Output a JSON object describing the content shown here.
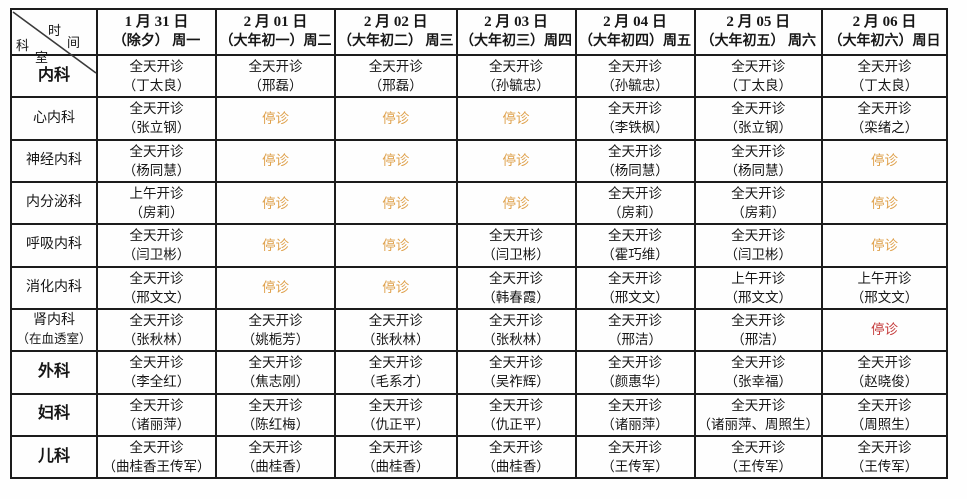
{
  "table": {
    "corner": {
      "time_chars": [
        "时",
        "间"
      ],
      "dept_chars": [
        "科",
        "室"
      ]
    },
    "columns": [
      {
        "date": "1 月 31 日",
        "note": "（除夕） 周一"
      },
      {
        "date": "2 月 01 日",
        "note": "（大年初一）周二"
      },
      {
        "date": "2 月 02 日",
        "note": "（大年初二） 周三"
      },
      {
        "date": "2 月 03 日",
        "note": "（大年初三）周四"
      },
      {
        "date": "2 月 04 日",
        "note": "（大年初四）周五"
      },
      {
        "date": "2 月 05 日",
        "note": "（大年初五） 周六"
      },
      {
        "date": "2 月 06 日",
        "note": "（大年初六）周日"
      }
    ],
    "rows": [
      {
        "dept": "内科",
        "dept_note": "",
        "bold": true,
        "cells": [
          {
            "status": "全天开诊",
            "doctor": "（丁太良）",
            "type": "open"
          },
          {
            "status": "全天开诊",
            "doctor": "（邢磊）",
            "type": "open"
          },
          {
            "status": "全天开诊",
            "doctor": "（邢磊）",
            "type": "open"
          },
          {
            "status": "全天开诊",
            "doctor": "（孙毓忠）",
            "type": "open"
          },
          {
            "status": "全天开诊",
            "doctor": "（孙毓忠）",
            "type": "open"
          },
          {
            "status": "全天开诊",
            "doctor": "（丁太良）",
            "type": "open"
          },
          {
            "status": "全天开诊",
            "doctor": "（丁太良）",
            "type": "open"
          }
        ]
      },
      {
        "dept": "心内科",
        "dept_note": "",
        "bold": false,
        "cells": [
          {
            "status": "全天开诊",
            "doctor": "（张立钢）",
            "type": "open"
          },
          {
            "status": "停诊",
            "doctor": "",
            "type": "suspended-orange"
          },
          {
            "status": "停诊",
            "doctor": "",
            "type": "suspended-orange"
          },
          {
            "status": "停诊",
            "doctor": "",
            "type": "suspended-orange"
          },
          {
            "status": "全天开诊",
            "doctor": "（李铁枫）",
            "type": "open"
          },
          {
            "status": "全天开诊",
            "doctor": "（张立钢）",
            "type": "open"
          },
          {
            "status": "全天开诊",
            "doctor": "（栾绪之）",
            "type": "open"
          }
        ]
      },
      {
        "dept": "神经内科",
        "dept_note": "",
        "bold": false,
        "cells": [
          {
            "status": "全天开诊",
            "doctor": "（杨同慧）",
            "type": "open"
          },
          {
            "status": "停诊",
            "doctor": "",
            "type": "suspended-orange"
          },
          {
            "status": "停诊",
            "doctor": "",
            "type": "suspended-orange"
          },
          {
            "status": "停诊",
            "doctor": "",
            "type": "suspended-orange"
          },
          {
            "status": "全天开诊",
            "doctor": "（杨同慧）",
            "type": "open"
          },
          {
            "status": "全天开诊",
            "doctor": "（杨同慧）",
            "type": "open"
          },
          {
            "status": "停诊",
            "doctor": "",
            "type": "suspended-orange"
          }
        ]
      },
      {
        "dept": "内分泌科",
        "dept_note": "",
        "bold": false,
        "cells": [
          {
            "status": "上午开诊",
            "doctor": "（房莉）",
            "type": "open"
          },
          {
            "status": "停诊",
            "doctor": "",
            "type": "suspended-orange"
          },
          {
            "status": "停诊",
            "doctor": "",
            "type": "suspended-orange"
          },
          {
            "status": "停诊",
            "doctor": "",
            "type": "suspended-orange"
          },
          {
            "status": "全天开诊",
            "doctor": "（房莉）",
            "type": "open"
          },
          {
            "status": "全天开诊",
            "doctor": "（房莉）",
            "type": "open"
          },
          {
            "status": "停诊",
            "doctor": "",
            "type": "suspended-orange"
          }
        ]
      },
      {
        "dept": "呼吸内科",
        "dept_note": "",
        "bold": false,
        "cells": [
          {
            "status": "全天开诊",
            "doctor": "（闫卫彬）",
            "type": "open"
          },
          {
            "status": "停诊",
            "doctor": "",
            "type": "suspended-orange"
          },
          {
            "status": "停诊",
            "doctor": "",
            "type": "suspended-orange"
          },
          {
            "status": "全天开诊",
            "doctor": "（闫卫彬）",
            "type": "open"
          },
          {
            "status": "全天开诊",
            "doctor": "（霍巧维）",
            "type": "open"
          },
          {
            "status": "全天开诊",
            "doctor": "（闫卫彬）",
            "type": "open"
          },
          {
            "status": "停诊",
            "doctor": "",
            "type": "suspended-orange"
          }
        ]
      },
      {
        "dept": "消化内科",
        "dept_note": "",
        "bold": false,
        "cells": [
          {
            "status": "全天开诊",
            "doctor": "（邢文文）",
            "type": "open"
          },
          {
            "status": "停诊",
            "doctor": "",
            "type": "suspended-orange"
          },
          {
            "status": "停诊",
            "doctor": "",
            "type": "suspended-orange"
          },
          {
            "status": "全天开诊",
            "doctor": "（韩春霞）",
            "type": "open"
          },
          {
            "status": "全天开诊",
            "doctor": "（邢文文）",
            "type": "open"
          },
          {
            "status": "上午开诊",
            "doctor": "（邢文文）",
            "type": "open"
          },
          {
            "status": "上午开诊",
            "doctor": "（邢文文）",
            "type": "open"
          }
        ]
      },
      {
        "dept": "肾内科",
        "dept_note": "（在血透室）",
        "bold": false,
        "cells": [
          {
            "status": "全天开诊",
            "doctor": "（张秋林）",
            "type": "open"
          },
          {
            "status": "全天开诊",
            "doctor": "（姚栀芳）",
            "type": "open"
          },
          {
            "status": "全天开诊",
            "doctor": "（张秋林）",
            "type": "open"
          },
          {
            "status": "全天开诊",
            "doctor": "（张秋林）",
            "type": "open"
          },
          {
            "status": "全天开诊",
            "doctor": "（邢洁）",
            "type": "open"
          },
          {
            "status": "全天开诊",
            "doctor": "（邢洁）",
            "type": "open"
          },
          {
            "status": "停诊",
            "doctor": "",
            "type": "suspended-red"
          }
        ]
      },
      {
        "dept": "外科",
        "dept_note": "",
        "bold": true,
        "cells": [
          {
            "status": "全天开诊",
            "doctor": "（李全红）",
            "type": "open"
          },
          {
            "status": "全天开诊",
            "doctor": "（焦志刚）",
            "type": "open"
          },
          {
            "status": "全天开诊",
            "doctor": "（毛系才）",
            "type": "open"
          },
          {
            "status": "全天开诊",
            "doctor": "（吴祚辉）",
            "type": "open"
          },
          {
            "status": "全天开诊",
            "doctor": "（颜惠华）",
            "type": "open"
          },
          {
            "status": "全天开诊",
            "doctor": "（张幸福）",
            "type": "open"
          },
          {
            "status": "全天开诊",
            "doctor": "（赵晓俊）",
            "type": "open"
          }
        ]
      },
      {
        "dept": "妇科",
        "dept_note": "",
        "bold": true,
        "cells": [
          {
            "status": "全天开诊",
            "doctor": "（诸丽萍）",
            "type": "open"
          },
          {
            "status": "全天开诊",
            "doctor": "（陈红梅）",
            "type": "open"
          },
          {
            "status": "全天开诊",
            "doctor": "（仇正平）",
            "type": "open"
          },
          {
            "status": "全天开诊",
            "doctor": "（仇正平）",
            "type": "open"
          },
          {
            "status": "全天开诊",
            "doctor": "（诸丽萍）",
            "type": "open"
          },
          {
            "status": "全天开诊",
            "doctor": "（诸丽萍、周照生）",
            "type": "open"
          },
          {
            "status": "全天开诊",
            "doctor": "（周照生）",
            "type": "open"
          }
        ]
      },
      {
        "dept": "儿科",
        "dept_note": "",
        "bold": true,
        "cells": [
          {
            "status": "全天开诊",
            "doctor": "（曲桂香王传军）",
            "type": "open"
          },
          {
            "status": "全天开诊",
            "doctor": "（曲桂香）",
            "type": "open"
          },
          {
            "status": "全天开诊",
            "doctor": "（曲桂香）",
            "type": "open"
          },
          {
            "status": "全天开诊",
            "doctor": "（曲桂香）",
            "type": "open"
          },
          {
            "status": "全天开诊",
            "doctor": "（王传军）",
            "type": "open"
          },
          {
            "status": "全天开诊",
            "doctor": "（王传军）",
            "type": "open"
          },
          {
            "status": "全天开诊",
            "doctor": "（王传军）",
            "type": "open"
          }
        ]
      }
    ]
  },
  "colors": {
    "open_text": "#161616",
    "suspended_orange": "#DFA14C",
    "suspended_red": "#C53B3B",
    "grid_border": "#1C1C1C"
  }
}
